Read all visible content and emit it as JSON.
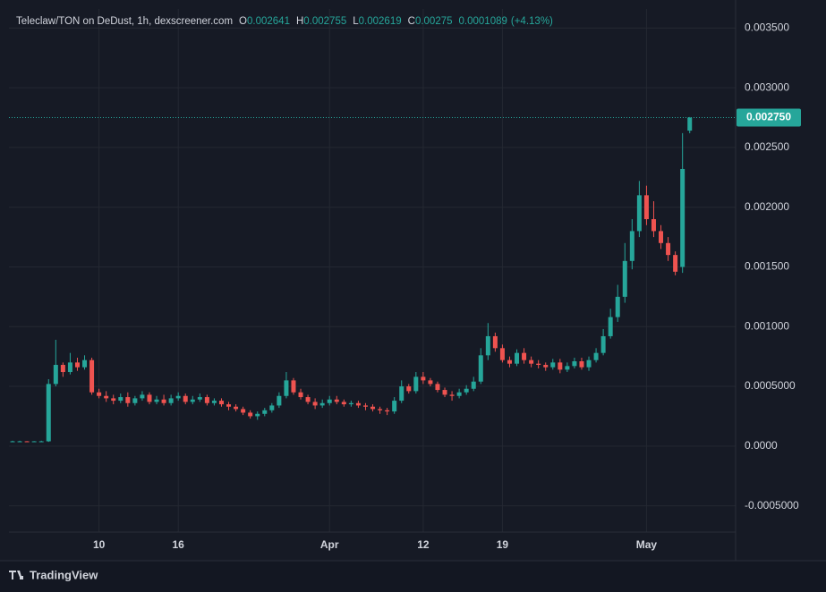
{
  "chart_data": {
    "type": "candlestick",
    "title": "Teleclaw/TON on DeDust, 1h, dexscreener.com",
    "ohlc_labels": [
      "O",
      "H",
      "L",
      "C"
    ],
    "ohlc": [
      0.002641,
      0.002755,
      0.002619,
      0.00275
    ],
    "change": 0.0001089,
    "change_label": "(+4.13%)",
    "brand": "TradingView",
    "up_color": "#26a69a",
    "down_color": "#ef5350",
    "grid": true,
    "ylim": [
      -0.00072,
      0.00366
    ],
    "yticks": [
      {
        "value": 0.0035,
        "label": "0.003500"
      },
      {
        "value": 0.003,
        "label": "0.003000"
      },
      {
        "value": 0.0025,
        "label": "0.002500"
      },
      {
        "value": 0.002,
        "label": "0.002000"
      },
      {
        "value": 0.0015,
        "label": "0.001500"
      },
      {
        "value": 0.001,
        "label": "0.001000"
      },
      {
        "value": 0.0005,
        "label": "0.0005000"
      },
      {
        "value": 0,
        "label": "0.0000"
      },
      {
        "value": -0.0005,
        "label": "-0.0005000"
      }
    ],
    "price_line": {
      "value": 0.00275,
      "label": "0.002750"
    },
    "categories": [
      null,
      null,
      null,
      null,
      null,
      null,
      null,
      null,
      null,
      null,
      null,
      null,
      "10",
      null,
      null,
      null,
      null,
      null,
      null,
      null,
      null,
      null,
      null,
      "16",
      null,
      null,
      null,
      null,
      null,
      null,
      null,
      null,
      null,
      null,
      null,
      null,
      null,
      null,
      null,
      null,
      null,
      null,
      null,
      null,
      "Apr",
      null,
      null,
      null,
      null,
      null,
      null,
      null,
      null,
      null,
      null,
      null,
      null,
      "12",
      null,
      null,
      null,
      null,
      null,
      null,
      null,
      null,
      null,
      null,
      "19",
      null,
      null,
      null,
      null,
      null,
      null,
      null,
      null,
      null,
      null,
      null,
      null,
      null,
      null,
      null,
      null,
      null,
      null,
      null,
      "May",
      null,
      null,
      null,
      null,
      null,
      null
    ],
    "open": [
      4e-05,
      4e-05,
      4e-05,
      3.8e-05,
      4e-05,
      4e-05,
      0.00052,
      0.00068,
      0.00062,
      0.0007,
      0.00066,
      0.00072,
      0.00045,
      0.00042,
      0.0004,
      0.00038,
      0.00041,
      0.00036,
      0.0004,
      0.00043,
      0.00037,
      0.00039,
      0.00036,
      0.0004,
      0.00042,
      0.00037,
      0.00039,
      0.00041,
      0.00036,
      0.00038,
      0.00035,
      0.00033,
      0.00031,
      0.00028,
      0.00025,
      0.00027,
      0.0003,
      0.00034,
      0.00042,
      0.00055,
      0.00045,
      0.00041,
      0.00037,
      0.00034,
      0.00036,
      0.00039,
      0.00037,
      0.00035,
      0.00036,
      0.00034,
      0.00033,
      0.00031,
      0.0003,
      0.00029,
      0.00038,
      0.0005,
      0.00046,
      0.00058,
      0.00055,
      0.00052,
      0.00047,
      0.00043,
      0.00042,
      0.00045,
      0.00048,
      0.00054,
      0.00076,
      0.00092,
      0.00082,
      0.00072,
      0.00069,
      0.00078,
      0.00072,
      0.00069,
      0.00068,
      0.00066,
      0.0007,
      0.00064,
      0.00067,
      0.00071,
      0.00066,
      0.00072,
      0.00078,
      0.00092,
      0.00108,
      0.00125,
      0.00155,
      0.0018,
      0.0021,
      0.0019,
      0.0018,
      0.0017,
      0.0016,
      0.0015,
      0.002641
    ],
    "high": [
      4.5e-05,
      4.5e-05,
      4.2e-05,
      4.2e-05,
      4.5e-05,
      0.00056,
      0.00089,
      0.0007,
      0.00078,
      0.00074,
      0.00076,
      0.00074,
      0.00048,
      0.00046,
      0.00043,
      0.00044,
      0.00045,
      0.00042,
      0.00046,
      0.00045,
      0.00042,
      0.00043,
      0.00043,
      0.00045,
      0.00044,
      0.00042,
      0.00044,
      0.00043,
      0.0004,
      0.0004,
      0.00037,
      0.00035,
      0.00033,
      0.0003,
      0.00029,
      0.00032,
      0.00036,
      0.00045,
      0.00062,
      0.00057,
      0.00048,
      0.00043,
      0.0004,
      0.00039,
      0.00042,
      0.00042,
      0.00039,
      0.00038,
      0.00038,
      0.00036,
      0.00035,
      0.00033,
      0.00032,
      0.00041,
      0.00055,
      0.00052,
      0.00062,
      0.00062,
      0.00057,
      0.00054,
      0.00049,
      0.00046,
      0.00048,
      0.00051,
      0.00058,
      0.00082,
      0.00103,
      0.00095,
      0.00085,
      0.00075,
      0.00081,
      0.00082,
      0.00075,
      0.00072,
      0.0007,
      0.00073,
      0.00073,
      0.0007,
      0.00074,
      0.00074,
      0.00075,
      0.00082,
      0.00098,
      0.00115,
      0.00135,
      0.0017,
      0.0019,
      0.00222,
      0.00218,
      0.00205,
      0.00185,
      0.00175,
      0.00163,
      0.00262,
      0.002755
    ],
    "low": [
      3.5e-05,
      3.5e-05,
      3.3e-05,
      3.3e-05,
      3.5e-05,
      3.5e-05,
      0.0005,
      0.00058,
      0.0006,
      0.00063,
      0.00064,
      0.00043,
      0.0004,
      0.00037,
      0.00035,
      0.00036,
      0.00033,
      0.00034,
      0.00038,
      0.00035,
      0.00035,
      0.00034,
      0.00034,
      0.00038,
      0.00035,
      0.00035,
      0.00037,
      0.00034,
      0.00034,
      0.00033,
      0.0003,
      0.00029,
      0.00026,
      0.00023,
      0.00022,
      0.00025,
      0.00028,
      0.00032,
      0.0004,
      0.00043,
      0.00039,
      0.00035,
      0.00031,
      0.00032,
      0.00034,
      0.00035,
      0.00033,
      0.00033,
      0.00032,
      0.0003,
      0.00029,
      0.00027,
      0.00026,
      0.00027,
      0.00036,
      0.00044,
      0.00044,
      0.00052,
      0.0005,
      0.00045,
      0.00041,
      0.00038,
      0.0004,
      0.00043,
      0.00046,
      0.00052,
      0.00072,
      0.00079,
      0.0007,
      0.00066,
      0.00067,
      0.00069,
      0.00066,
      0.00065,
      0.00063,
      0.00064,
      0.00061,
      0.00062,
      0.00065,
      0.00064,
      0.00063,
      0.0007,
      0.00076,
      0.0009,
      0.00104,
      0.0012,
      0.00148,
      0.00175,
      0.00185,
      0.00175,
      0.00165,
      0.00155,
      0.00143,
      0.00145,
      0.002619
    ],
    "close": [
      4e-05,
      4e-05,
      3.8e-05,
      4e-05,
      4e-05,
      0.00052,
      0.00068,
      0.00062,
      0.0007,
      0.00066,
      0.00072,
      0.00045,
      0.00042,
      0.0004,
      0.00038,
      0.00041,
      0.00036,
      0.0004,
      0.00043,
      0.00037,
      0.00039,
      0.00036,
      0.0004,
      0.00042,
      0.00037,
      0.00039,
      0.00041,
      0.00036,
      0.00038,
      0.00035,
      0.00033,
      0.00031,
      0.00028,
      0.00025,
      0.00027,
      0.0003,
      0.00034,
      0.00042,
      0.00055,
      0.00045,
      0.00041,
      0.00037,
      0.00034,
      0.00036,
      0.00039,
      0.00037,
      0.00035,
      0.00036,
      0.00034,
      0.00033,
      0.00031,
      0.0003,
      0.00029,
      0.00038,
      0.0005,
      0.00046,
      0.00058,
      0.00055,
      0.00052,
      0.00047,
      0.00043,
      0.00042,
      0.00045,
      0.00048,
      0.00054,
      0.00076,
      0.00092,
      0.00082,
      0.00072,
      0.00069,
      0.00078,
      0.00072,
      0.00069,
      0.00068,
      0.00066,
      0.0007,
      0.00064,
      0.00067,
      0.00071,
      0.00066,
      0.00072,
      0.00078,
      0.00092,
      0.00108,
      0.00125,
      0.00155,
      0.0018,
      0.0021,
      0.0019,
      0.0018,
      0.0017,
      0.0016,
      0.00146,
      0.00232,
      0.00275
    ]
  }
}
